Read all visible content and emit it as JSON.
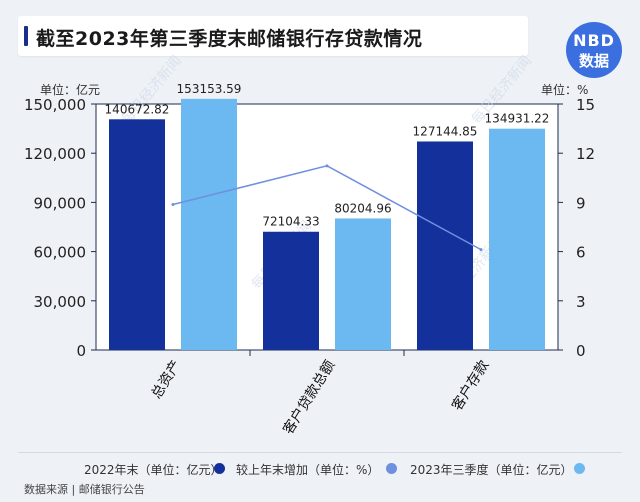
{
  "title": "截至2023年第三季度末邮储银行存贷款情况",
  "logo": {
    "line1": "NBD",
    "line2": "数据"
  },
  "unit_left": "单位：亿元",
  "unit_right": "单位：%",
  "watermark": "每日经济新闻",
  "source": "数据来源 | 邮储银行公告",
  "colors": {
    "bar_2022": "#14309a",
    "bar_2023q3": "#6cb8f0",
    "line": "#6f8fe0",
    "bg": "#eef2f7"
  },
  "chart_data": {
    "type": "bar+line",
    "categories": [
      "总资产",
      "客户贷款总额",
      "客户存款"
    ],
    "series": [
      {
        "name": "2022年末（单位：亿元）",
        "type": "bar",
        "axis": "left",
        "values": [
          140672.82,
          72104.33,
          127144.85
        ],
        "labels": [
          "140672.82",
          "72104.33",
          "127144.85"
        ]
      },
      {
        "name": "2023年三季度（单位：亿元）",
        "type": "bar",
        "axis": "left",
        "values": [
          153153.59,
          80204.96,
          134931.22
        ],
        "labels": [
          "153153.59",
          "80204.96",
          "134931.22"
        ]
      },
      {
        "name": "较上年末增加（单位：%）",
        "type": "line",
        "axis": "right",
        "values": [
          8.87,
          11.23,
          6.12
        ]
      }
    ],
    "y_left": {
      "min": 0,
      "max": 150000,
      "ticks": [
        0,
        30000,
        60000,
        90000,
        120000,
        150000
      ],
      "tick_labels": [
        "0",
        "30,000",
        "60,000",
        "90,000",
        "120,000",
        "150,000"
      ]
    },
    "y_right": {
      "min": 0,
      "max": 15,
      "ticks": [
        0,
        3,
        6,
        9,
        12,
        15
      ],
      "tick_labels": [
        "0",
        "3",
        "6",
        "9",
        "12",
        "15"
      ]
    },
    "legend_position": "bottom"
  }
}
